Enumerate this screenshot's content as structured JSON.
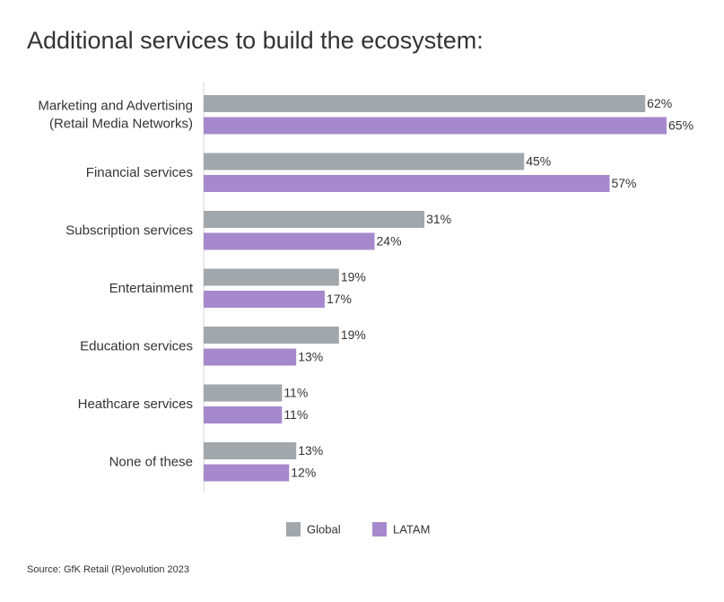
{
  "chart_data": {
    "type": "bar",
    "orientation": "horizontal",
    "title": "Additional services to build the ecosystem:",
    "categories": [
      [
        "Marketing and Advertising",
        "(Retail Media Networks)"
      ],
      "Financial services",
      "Subscription services",
      "Entertainment",
      "Education services",
      "Heathcare services",
      "None of these"
    ],
    "series": [
      {
        "name": "Global",
        "color": "#a2a7ab",
        "values": [
          62,
          45,
          31,
          19,
          19,
          11,
          13
        ],
        "value_labels": [
          "62%",
          "45%",
          "31%",
          "19%",
          "19%",
          "11%",
          "13%"
        ]
      },
      {
        "name": "LATAM",
        "color": "#a689cc",
        "values": [
          65,
          57,
          24,
          17,
          13,
          11,
          12
        ],
        "value_labels": [
          "65%",
          "57%",
          "24%",
          "17%",
          "13%",
          "11%",
          "12%"
        ]
      }
    ],
    "source": "Source: GfK Retail (R)evolution 2023"
  }
}
